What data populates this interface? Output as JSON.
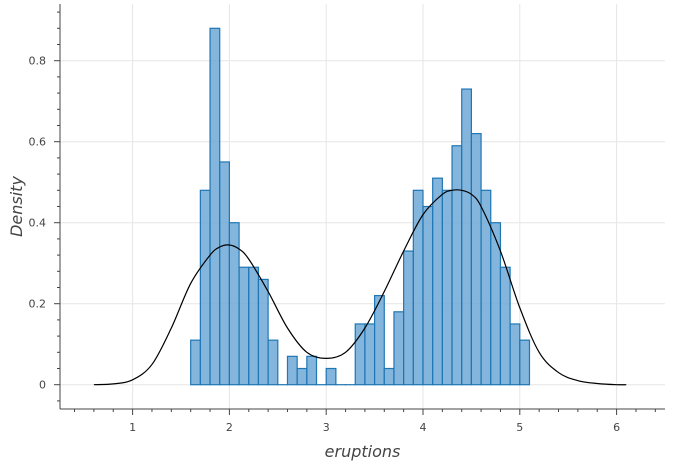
{
  "chart_data": {
    "type": "bar",
    "title": "",
    "xlabel": "eruptions",
    "ylabel": "Density",
    "xlim": [
      0.25,
      6.5
    ],
    "ylim": [
      -0.06,
      0.94
    ],
    "x_ticks": [
      1,
      2,
      3,
      4,
      5,
      6
    ],
    "x_tick_labels": [
      "1",
      "2",
      "3",
      "4",
      "5",
      "6"
    ],
    "y_ticks": [
      0,
      0.2,
      0.4,
      0.6,
      0.8
    ],
    "y_tick_labels": [
      "0",
      "0.2",
      "0.4",
      "0.6",
      "0.8"
    ],
    "grid": true,
    "legend": "none",
    "colors": {
      "bar_fill": "#6fa8d6",
      "bar_stroke": "#1f77b4",
      "curve": "#000000",
      "grid": "#e6e6e6",
      "axis": "#444444"
    },
    "histogram": {
      "bin_width": 0.1,
      "bin_start": 1.6,
      "density": [
        0.11,
        0.48,
        0.88,
        0.55,
        0.4,
        0.29,
        0.29,
        0.26,
        0.11,
        0.0,
        0.07,
        0.04,
        0.07,
        0.0,
        0.04,
        0.0,
        0.0,
        0.15,
        0.15,
        0.22,
        0.04,
        0.18,
        0.33,
        0.48,
        0.44,
        0.51,
        0.48,
        0.59,
        0.73,
        0.62,
        0.48,
        0.4,
        0.29,
        0.15,
        0.11
      ]
    },
    "kde_curve": {
      "x": [
        0.6,
        0.8,
        1.0,
        1.2,
        1.4,
        1.6,
        1.8,
        1.9,
        2.0,
        2.1,
        2.2,
        2.4,
        2.6,
        2.8,
        3.0,
        3.2,
        3.4,
        3.6,
        3.8,
        4.0,
        4.2,
        4.3,
        4.4,
        4.5,
        4.6,
        4.8,
        5.0,
        5.2,
        5.4,
        5.6,
        5.8,
        6.0,
        6.1
      ],
      "y": [
        0.0,
        0.002,
        0.012,
        0.05,
        0.14,
        0.25,
        0.32,
        0.34,
        0.345,
        0.335,
        0.31,
        0.23,
        0.14,
        0.08,
        0.065,
        0.08,
        0.14,
        0.23,
        0.33,
        0.42,
        0.47,
        0.48,
        0.48,
        0.47,
        0.44,
        0.33,
        0.19,
        0.08,
        0.03,
        0.01,
        0.003,
        0.0,
        0.0
      ]
    }
  }
}
